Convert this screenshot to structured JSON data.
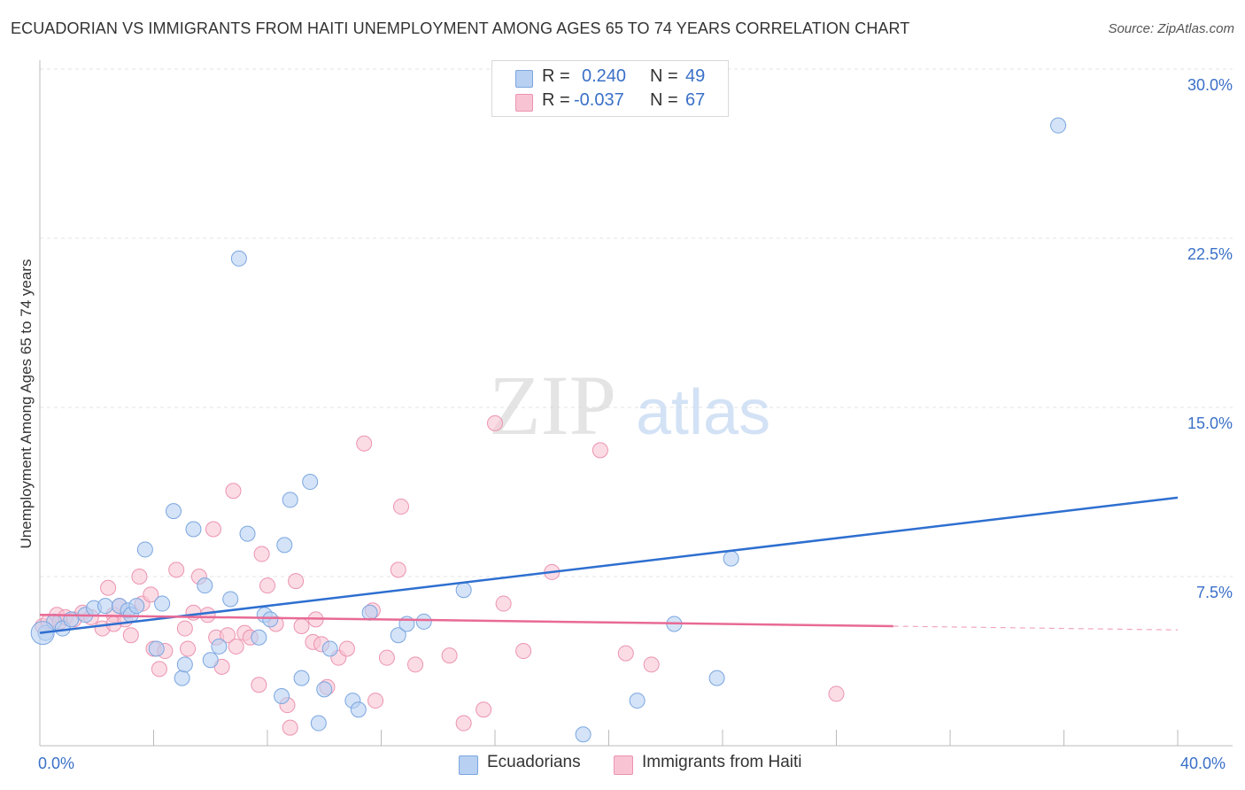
{
  "title": "ECUADORIAN VS IMMIGRANTS FROM HAITI UNEMPLOYMENT AMONG AGES 65 TO 74 YEARS CORRELATION CHART",
  "source": "Source: ZipAtlas.com",
  "watermark": {
    "zip": "ZIP",
    "atlas": "atlas"
  },
  "legend_top": {
    "rows": [
      {
        "r_label": "R =",
        "r_value": "0.240",
        "n_label": "N =",
        "n_value": "49"
      },
      {
        "r_label": "R =",
        "r_value": "-0.037",
        "n_label": "N =",
        "n_value": "67"
      }
    ]
  },
  "legend_bottom": {
    "series1": "Ecuadorians",
    "series2": "Immigrants from Haiti"
  },
  "colors": {
    "ecuadorian_fill": "#b8d0f2",
    "ecuadorian_stroke": "#7aa6e0",
    "ecuadorian_line": "#2e6fd0",
    "haiti_fill": "#f8c4d4",
    "haiti_stroke": "#ec93b0",
    "haiti_line": "#e86a95",
    "tick_text": "#3a70c8",
    "grid": "#e3e3e3"
  },
  "chart_data": {
    "type": "scatter",
    "title": "ECUADORIAN VS IMMIGRANTS FROM HAITI UNEMPLOYMENT AMONG AGES 65 TO 74 YEARS CORRELATION CHART",
    "xlabel": "",
    "ylabel": "Unemployment Among Ages 65 to 74 years",
    "xlim": [
      0,
      40
    ],
    "ylim": [
      0,
      30
    ],
    "x_tick_labels": [
      "0.0%",
      "40.0%"
    ],
    "y_ticks": [
      {
        "value": 7.5,
        "label": "7.5%"
      },
      {
        "value": 15.0,
        "label": "15.0%"
      },
      {
        "value": 22.5,
        "label": "22.5%"
      },
      {
        "value": 30.0,
        "label": "30.0%"
      }
    ],
    "grid": true,
    "legend_position": "top-center",
    "series": [
      {
        "name": "Ecuadorians",
        "r": 0.24,
        "n": 49,
        "trend": {
          "x0": 0,
          "y0": 5.0,
          "x1": 40,
          "y1": 11.0
        },
        "points": [
          [
            0.2,
            5.0
          ],
          [
            0.5,
            5.5
          ],
          [
            0.8,
            5.2
          ],
          [
            1.1,
            5.6
          ],
          [
            1.6,
            5.8
          ],
          [
            1.9,
            6.1
          ],
          [
            2.3,
            6.2
          ],
          [
            2.8,
            6.2
          ],
          [
            3.1,
            6.0
          ],
          [
            3.2,
            5.8
          ],
          [
            3.4,
            6.2
          ],
          [
            3.7,
            8.7
          ],
          [
            4.1,
            4.3
          ],
          [
            4.3,
            6.3
          ],
          [
            4.7,
            10.4
          ],
          [
            5.0,
            3.0
          ],
          [
            5.1,
            3.6
          ],
          [
            5.4,
            9.6
          ],
          [
            5.8,
            7.1
          ],
          [
            6.0,
            3.8
          ],
          [
            6.3,
            4.4
          ],
          [
            6.7,
            6.5
          ],
          [
            7.0,
            21.6
          ],
          [
            7.3,
            9.4
          ],
          [
            7.7,
            4.8
          ],
          [
            7.9,
            5.8
          ],
          [
            8.1,
            5.6
          ],
          [
            8.5,
            2.2
          ],
          [
            8.6,
            8.9
          ],
          [
            8.8,
            10.9
          ],
          [
            9.2,
            3.0
          ],
          [
            9.5,
            11.7
          ],
          [
            9.8,
            1.0
          ],
          [
            10.0,
            2.5
          ],
          [
            10.2,
            4.3
          ],
          [
            11.0,
            2.0
          ],
          [
            11.2,
            1.6
          ],
          [
            11.6,
            5.9
          ],
          [
            12.6,
            4.9
          ],
          [
            12.9,
            5.4
          ],
          [
            13.5,
            5.5
          ],
          [
            14.9,
            6.9
          ],
          [
            19.1,
            0.5
          ],
          [
            21.0,
            2.0
          ],
          [
            22.3,
            5.4
          ],
          [
            23.8,
            3.0
          ],
          [
            24.3,
            8.3
          ],
          [
            35.8,
            27.5
          ],
          [
            0.1,
            5.0
          ]
        ]
      },
      {
        "name": "Immigrants from Haiti",
        "r": -0.037,
        "n": 67,
        "trend": {
          "x0": 0,
          "y0": 5.8,
          "x1": 30,
          "y1": 5.3
        },
        "points": [
          [
            0.1,
            5.3
          ],
          [
            0.3,
            5.5
          ],
          [
            0.6,
            5.8
          ],
          [
            0.7,
            5.5
          ],
          [
            0.9,
            5.7
          ],
          [
            1.2,
            5.6
          ],
          [
            1.5,
            5.9
          ],
          [
            1.8,
            5.7
          ],
          [
            2.2,
            5.2
          ],
          [
            2.4,
            7.0
          ],
          [
            2.6,
            5.8
          ],
          [
            2.6,
            5.4
          ],
          [
            2.8,
            6.2
          ],
          [
            3.0,
            5.6
          ],
          [
            3.2,
            4.9
          ],
          [
            3.5,
            7.5
          ],
          [
            3.6,
            6.3
          ],
          [
            3.9,
            6.7
          ],
          [
            4.0,
            4.3
          ],
          [
            4.2,
            3.4
          ],
          [
            4.4,
            4.2
          ],
          [
            4.8,
            7.8
          ],
          [
            5.1,
            5.2
          ],
          [
            5.2,
            4.3
          ],
          [
            5.4,
            5.9
          ],
          [
            5.6,
            7.5
          ],
          [
            5.9,
            5.8
          ],
          [
            6.1,
            9.6
          ],
          [
            6.2,
            4.8
          ],
          [
            6.4,
            3.5
          ],
          [
            6.6,
            4.9
          ],
          [
            6.8,
            11.3
          ],
          [
            6.9,
            4.4
          ],
          [
            7.2,
            5.0
          ],
          [
            7.4,
            4.8
          ],
          [
            7.7,
            2.7
          ],
          [
            7.8,
            8.5
          ],
          [
            8.0,
            7.1
          ],
          [
            8.3,
            5.4
          ],
          [
            8.7,
            1.8
          ],
          [
            8.8,
            0.8
          ],
          [
            9.0,
            7.3
          ],
          [
            9.2,
            5.3
          ],
          [
            9.6,
            4.6
          ],
          [
            9.7,
            5.6
          ],
          [
            9.9,
            4.5
          ],
          [
            10.1,
            2.6
          ],
          [
            10.5,
            3.9
          ],
          [
            10.8,
            4.3
          ],
          [
            11.4,
            13.4
          ],
          [
            11.7,
            6.0
          ],
          [
            11.8,
            2.0
          ],
          [
            12.2,
            3.9
          ],
          [
            12.6,
            7.8
          ],
          [
            12.7,
            10.6
          ],
          [
            13.2,
            3.6
          ],
          [
            14.4,
            4.0
          ],
          [
            14.9,
            1.0
          ],
          [
            15.6,
            1.6
          ],
          [
            16.0,
            14.3
          ],
          [
            16.3,
            6.3
          ],
          [
            17.0,
            4.2
          ],
          [
            18.0,
            7.7
          ],
          [
            19.7,
            13.1
          ],
          [
            20.6,
            4.1
          ],
          [
            21.5,
            3.6
          ],
          [
            28.0,
            2.3
          ]
        ]
      }
    ]
  }
}
